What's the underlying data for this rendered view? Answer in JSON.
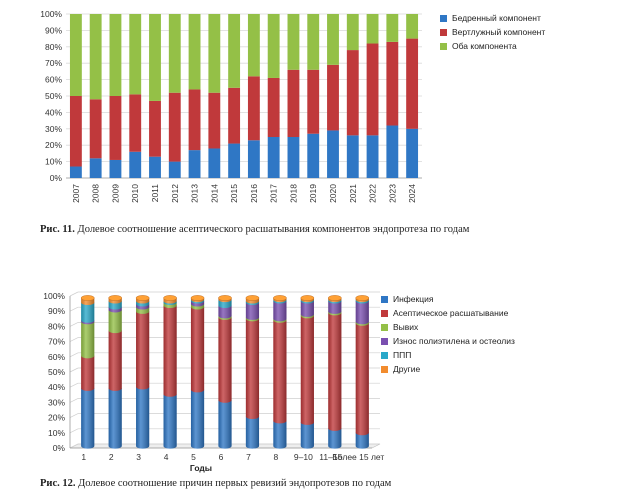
{
  "chart_data": [
    {
      "type": "bar",
      "stacked": true,
      "caption_label": "Рис. 11.",
      "caption_text": "Долевое соотношение асептического расшатывания компонентов эндопротеза по годам",
      "categories": [
        "2007",
        "2008",
        "2009",
        "2010",
        "2011",
        "2012",
        "2013",
        "2014",
        "2015",
        "2016",
        "2017",
        "2018",
        "2019",
        "2020",
        "2021",
        "2022",
        "2023",
        "2024"
      ],
      "ytick_labels": [
        "0%",
        "10%",
        "20%",
        "30%",
        "40%",
        "50%",
        "60%",
        "70%",
        "80%",
        "90%",
        "100%"
      ],
      "ylim": [
        0,
        100
      ],
      "legend_position": "right",
      "series": [
        {
          "name": "Бедренный компонент",
          "color": "#2f77c5",
          "values": [
            7,
            12,
            11,
            16,
            13,
            10,
            17,
            18,
            21,
            23,
            25,
            25,
            27,
            29,
            26,
            26,
            32,
            30
          ]
        },
        {
          "name": "Вертлужный компонент",
          "color": "#c0393b",
          "values": [
            43,
            36,
            39,
            35,
            34,
            42,
            37,
            34,
            34,
            39,
            36,
            41,
            39,
            40,
            52,
            56,
            51,
            55
          ]
        },
        {
          "name": "Оба компонента",
          "color": "#94c047",
          "values": [
            50,
            52,
            50,
            49,
            53,
            48,
            46,
            48,
            45,
            38,
            39,
            34,
            34,
            31,
            22,
            18,
            17,
            15
          ]
        }
      ]
    },
    {
      "type": "bar",
      "stacked": true,
      "style": "3d-cylinder",
      "caption_label": "Рис. 12.",
      "caption_text": "Долевое соотношение причин первых ревизий эндопротезов по годам",
      "xlabel": "Годы",
      "categories": [
        "1",
        "2",
        "3",
        "4",
        "5",
        "6",
        "7",
        "8",
        "9–10",
        "11–15",
        "Более 15 лет"
      ],
      "ytick_labels": [
        "0%",
        "10%",
        "20%",
        "30%",
        "40%",
        "50%",
        "60%",
        "70%",
        "80%",
        "90%",
        "100%"
      ],
      "ylim": [
        0,
        100
      ],
      "legend_position": "right",
      "series": [
        {
          "name": "Инфекция",
          "color": "#2f77c5",
          "values": [
            39,
            39,
            40,
            35,
            38,
            31,
            20,
            17,
            16,
            12,
            9
          ]
        },
        {
          "name": "Асептическое расшатывание",
          "color": "#c0393b",
          "values": [
            22,
            39,
            51,
            60,
            56,
            56,
            66,
            68,
            72,
            78,
            74
          ]
        },
        {
          "name": "Вывих",
          "color": "#94c047",
          "values": [
            23,
            14,
            3,
            2,
            2,
            1,
            1,
            1,
            1,
            1,
            1
          ]
        },
        {
          "name": "Износ полиэтилена и остеолиз",
          "color": "#7a4fb0",
          "values": [
            1,
            2,
            2,
            0,
            2,
            7,
            10,
            12,
            9,
            7,
            14
          ]
        },
        {
          "name": "ППП",
          "color": "#29a8c9",
          "values": [
            12,
            4,
            2,
            1,
            1,
            4,
            1,
            1,
            1,
            1,
            1
          ]
        },
        {
          "name": "Другие",
          "color": "#f28c2e",
          "values": [
            3,
            2,
            2,
            2,
            1,
            1,
            2,
            1,
            1,
            1,
            1
          ]
        }
      ]
    }
  ]
}
